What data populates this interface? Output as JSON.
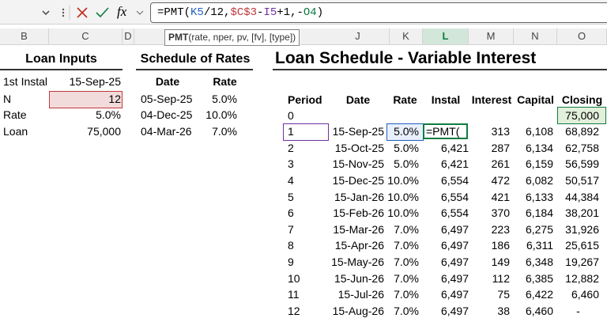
{
  "formula_bar": {
    "fx": "fx",
    "formula": [
      {
        "text": "=PMT(",
        "color": "#000000"
      },
      {
        "text": "K5",
        "color": "#1f5fc1"
      },
      {
        "text": "/12,",
        "color": "#000000"
      },
      {
        "text": "$C$3",
        "color": "#c0393b"
      },
      {
        "text": "-",
        "color": "#000000"
      },
      {
        "text": "I5",
        "color": "#7030a0"
      },
      {
        "text": "+1,-",
        "color": "#000000"
      },
      {
        "text": "O4",
        "color": "#107c41"
      },
      {
        "text": ")",
        "color": "#000000"
      }
    ]
  },
  "tooltip": {
    "function": "PMT",
    "args": "(rate, nper, pv, [fv], [type])"
  },
  "column_headers": [
    "B",
    "C",
    "D",
    "J",
    "K",
    "L",
    "M",
    "N",
    "O"
  ],
  "loan_inputs": {
    "title": "Loan Inputs",
    "rows": [
      [
        "1st Instal",
        "15-Sep-25"
      ],
      [
        "N",
        "12"
      ],
      [
        "Rate",
        "5.0%"
      ],
      [
        "Loan",
        "75,000"
      ]
    ]
  },
  "schedule_of_rates": {
    "title": "Schedule of Rates",
    "headers": [
      "Date",
      "Rate"
    ],
    "rows": [
      [
        "05-Sep-25",
        "5.0%"
      ],
      [
        "04-Dec-25",
        "10.0%"
      ],
      [
        "04-Mar-26",
        "7.0%"
      ]
    ]
  },
  "loan_schedule": {
    "title": "Loan Schedule - Variable Interest",
    "headers": [
      "Period",
      "Date",
      "Rate",
      "Instal",
      "Interest",
      "Capital",
      "Closing"
    ],
    "rows": [
      [
        "0",
        null,
        null,
        null,
        null,
        null,
        "75,000"
      ],
      [
        "1",
        "15-Sep-25",
        "5.0%",
        "=PMT(",
        "313",
        "6,108",
        "68,892"
      ],
      [
        "2",
        "15-Oct-25",
        "5.0%",
        "6,421",
        "287",
        "6,134",
        "62,758"
      ],
      [
        "3",
        "15-Nov-25",
        "5.0%",
        "6,421",
        "261",
        "6,159",
        "56,599"
      ],
      [
        "4",
        "15-Dec-25",
        "10.0%",
        "6,554",
        "472",
        "6,082",
        "50,517"
      ],
      [
        "5",
        "15-Jan-26",
        "10.0%",
        "6,554",
        "421",
        "6,133",
        "44,384"
      ],
      [
        "6",
        "15-Feb-26",
        "10.0%",
        "6,554",
        "370",
        "6,184",
        "38,201"
      ],
      [
        "7",
        "15-Mar-26",
        "7.0%",
        "6,497",
        "223",
        "6,275",
        "31,926"
      ],
      [
        "8",
        "15-Apr-26",
        "7.0%",
        "6,497",
        "186",
        "6,311",
        "25,615"
      ],
      [
        "9",
        "15-May-26",
        "7.0%",
        "6,497",
        "149",
        "6,348",
        "19,267"
      ],
      [
        "10",
        "15-Jun-26",
        "7.0%",
        "6,497",
        "112",
        "6,385",
        "12,882"
      ],
      [
        "11",
        "15-Jul-26",
        "7.0%",
        "6,497",
        "75",
        "6,422",
        "6,460"
      ],
      [
        "12",
        "15-Aug-26",
        "7.0%",
        "6,497",
        "38",
        "6,460",
        "-"
      ]
    ]
  }
}
